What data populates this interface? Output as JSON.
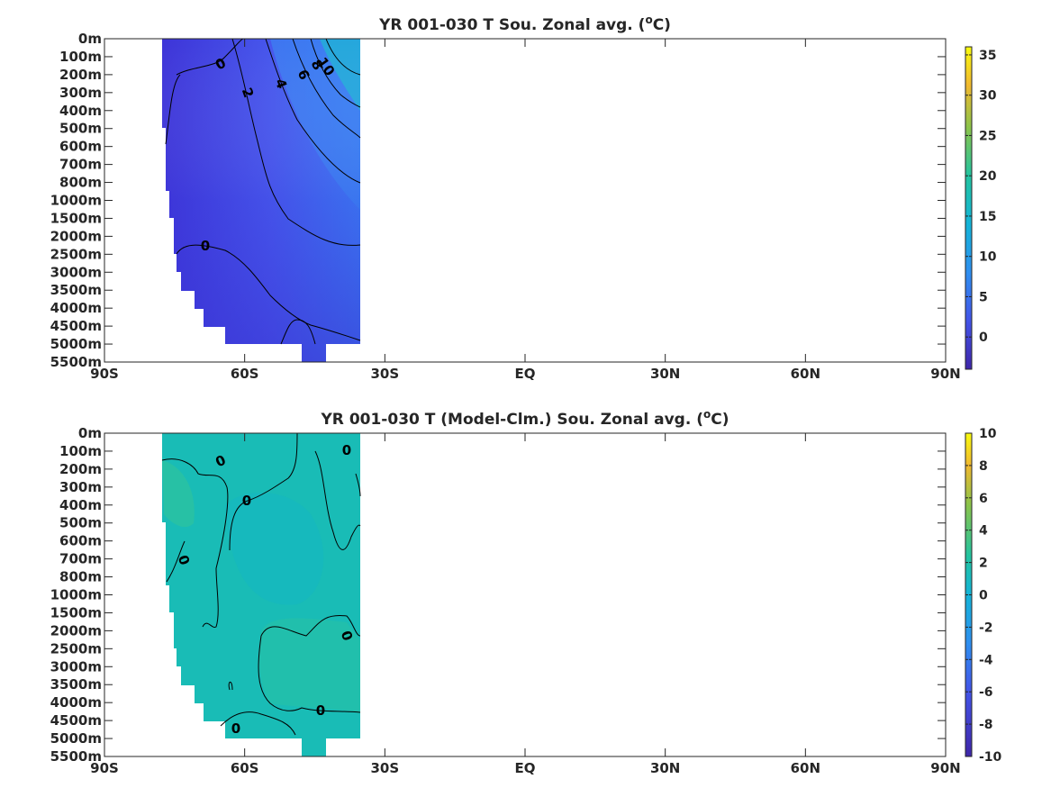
{
  "chart_data": [
    {
      "type": "heatmap",
      "title": "YR 001-030 T Sou. Zonal avg. (",
      "title_unit_sup": "o",
      "title_unit_tail": "C)",
      "x_ticks": [
        "90S",
        "60S",
        "30S",
        "EQ",
        "30N",
        "60N",
        "90N"
      ],
      "x_values": [
        -90,
        -60,
        -30,
        0,
        30,
        60,
        90
      ],
      "y_ticks": [
        "0m",
        "100m",
        "200m",
        "300m",
        "400m",
        "500m",
        "600m",
        "700m",
        "800m",
        "1000m",
        "1500m",
        "2000m",
        "2500m",
        "3000m",
        "3500m",
        "4000m",
        "4500m",
        "5000m",
        "5500m"
      ],
      "colorbar": {
        "ticks": [
          "35",
          "30",
          "25",
          "20",
          "15",
          "10",
          "5",
          "0"
        ],
        "values": [
          35,
          30,
          25,
          20,
          15,
          10,
          5,
          0
        ],
        "range": [
          -4,
          36
        ]
      },
      "contour_labels": [
        "0",
        "2",
        "4",
        "6",
        "8",
        "10",
        "0"
      ],
      "colors": {
        "deep": "#3d32d6",
        "mid": "#4a5ef0",
        "warm": "#2f9df0",
        "surface": "#1fb8c8"
      }
    },
    {
      "type": "heatmap",
      "title": "YR 001-030 T (Model-Clm.) Sou. Zonal avg. (",
      "title_unit_sup": "o",
      "title_unit_tail": "C)",
      "x_ticks": [
        "90S",
        "60S",
        "30S",
        "EQ",
        "30N",
        "60N",
        "90N"
      ],
      "x_values": [
        -90,
        -60,
        -30,
        0,
        30,
        60,
        90
      ],
      "y_ticks": [
        "0m",
        "100m",
        "200m",
        "300m",
        "400m",
        "500m",
        "600m",
        "700m",
        "800m",
        "1000m",
        "1500m",
        "2000m",
        "2500m",
        "3000m",
        "3500m",
        "4000m",
        "4500m",
        "5000m",
        "5500m"
      ],
      "colorbar": {
        "ticks": [
          "10",
          "8",
          "6",
          "4",
          "2",
          "0",
          "-2",
          "-4",
          "-6",
          "-8",
          "-10"
        ],
        "values": [
          10,
          8,
          6,
          4,
          2,
          0,
          -2,
          -4,
          -6,
          -8,
          -10
        ],
        "range": [
          -10,
          10
        ]
      },
      "contour_labels": [
        "0",
        "0",
        "0",
        "0",
        "0",
        "0",
        "0",
        "0"
      ],
      "colors": {
        "fill": "#19bcb6",
        "warm_patch": "#30c59a",
        "cool_patch": "#14b6c4"
      }
    }
  ]
}
